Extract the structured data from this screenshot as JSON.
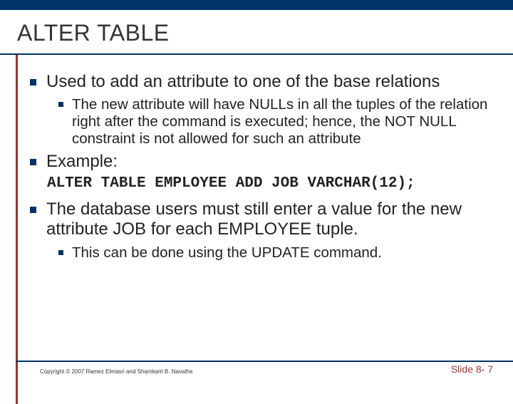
{
  "colors": {
    "top_bar": "#003366",
    "accent_border": "#993333",
    "bullet": "#003366",
    "title_text": "#333333",
    "body_text": "#222222",
    "slide_num": "#993333",
    "background": "#ffffff"
  },
  "title": "ALTER TABLE",
  "bullets": [
    {
      "level": 1,
      "text": "Used to add an attribute to one of the base relations"
    },
    {
      "level": 2,
      "text": "The new attribute will have NULLs in all the tuples of the relation right after the command is executed; hence, the NOT NULL constraint is not allowed  for such an attribute"
    },
    {
      "level": 1,
      "text": "Example:"
    }
  ],
  "code": "ALTER TABLE EMPLOYEE ADD JOB VARCHAR(12);",
  "bullets2": [
    {
      "level": 1,
      "text": "The database users must still enter a value for the new attribute JOB for each EMPLOYEE tuple."
    },
    {
      "level": 2,
      "text": "This can be done using the UPDATE command."
    }
  ],
  "footer": {
    "copyright": "Copyright © 2007 Ramez Elmasri and Shamkant B. Navathe",
    "slide": "Slide 8- 7"
  },
  "typography": {
    "title_fontsize": 32,
    "l1_fontsize": 24,
    "l2_fontsize": 20.5,
    "code_fontsize": 21,
    "copyright_fontsize": 8,
    "slidenum_fontsize": 14
  }
}
